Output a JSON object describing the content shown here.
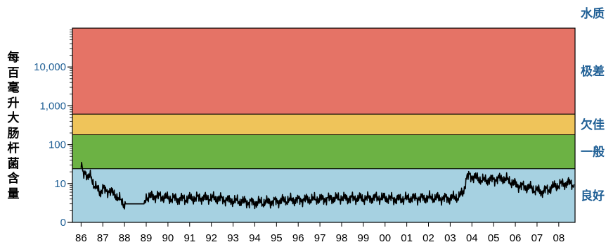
{
  "chart_data": {
    "type": "line",
    "ylabel": "每百毫升大肠杆菌含量",
    "yscale": "log",
    "ylim": [
      1,
      100000
    ],
    "yticks": [
      {
        "value": 1,
        "label": "0"
      },
      {
        "value": 10,
        "label": "10"
      },
      {
        "value": 100,
        "label": "100"
      },
      {
        "value": 1000,
        "label": "1,000"
      },
      {
        "value": 10000,
        "label": "10,000"
      }
    ],
    "xlim": [
      1985.6,
      2008.75
    ],
    "xticks": [
      "86",
      "87",
      "88",
      "89",
      "90",
      "91",
      "92",
      "93",
      "94",
      "95",
      "96",
      "97",
      "98",
      "99",
      "00",
      "01",
      "02",
      "03",
      "04",
      "05",
      "06",
      "07",
      "08"
    ],
    "right_header": "水质",
    "zones": [
      {
        "label": "极差",
        "from": 610,
        "to": 100000,
        "color": "#e57366"
      },
      {
        "label": "欠佳",
        "from": 180,
        "to": 610,
        "color": "#efc45a"
      },
      {
        "label": "一般",
        "from": 24,
        "to": 180,
        "color": "#6cb244"
      },
      {
        "label": "良好",
        "from": 1,
        "to": 24,
        "color": "#a6d1e1"
      }
    ],
    "series": [
      {
        "color": "#000000",
        "points": [
          [
            1986.0,
            30
          ],
          [
            1986.1,
            18
          ],
          [
            1986.2,
            22
          ],
          [
            1986.3,
            13
          ],
          [
            1986.45,
            16
          ],
          [
            1986.6,
            9
          ],
          [
            1986.75,
            7
          ],
          [
            1986.9,
            6
          ],
          [
            1987.0,
            8
          ],
          [
            1987.15,
            6
          ],
          [
            1987.3,
            7
          ],
          [
            1987.45,
            5.5
          ],
          [
            1987.6,
            5
          ],
          [
            1987.75,
            4
          ],
          [
            1987.9,
            3.2
          ],
          [
            1988.0,
            3
          ],
          [
            1988.5,
            3
          ],
          [
            1988.9,
            3
          ],
          [
            1989.0,
            4.5
          ],
          [
            1989.5,
            4.8
          ],
          [
            1990.0,
            4.2
          ],
          [
            1990.5,
            4
          ],
          [
            1991.0,
            4.1
          ],
          [
            1991.5,
            4.3
          ],
          [
            1992.0,
            4.2
          ],
          [
            1992.5,
            4
          ],
          [
            1993.0,
            3.6
          ],
          [
            1993.5,
            3.4
          ],
          [
            1994.0,
            3.2
          ],
          [
            1994.5,
            3.3
          ],
          [
            1995.0,
            3.5
          ],
          [
            1995.5,
            3.7
          ],
          [
            1996.0,
            3.8
          ],
          [
            1996.5,
            3.9
          ],
          [
            1997.0,
            4
          ],
          [
            1997.5,
            4.1
          ],
          [
            1998.0,
            4.2
          ],
          [
            1998.5,
            4.2
          ],
          [
            1999.0,
            4.1
          ],
          [
            1999.5,
            4.3
          ],
          [
            2000.0,
            4.2
          ],
          [
            2000.5,
            4
          ],
          [
            2001.0,
            4.1
          ],
          [
            2001.5,
            4.2
          ],
          [
            2002.0,
            4.3
          ],
          [
            2002.5,
            4.2
          ],
          [
            2003.0,
            4.2
          ],
          [
            2003.4,
            4.5
          ],
          [
            2003.6,
            6
          ],
          [
            2003.75,
            14
          ],
          [
            2003.9,
            16
          ],
          [
            2004.2,
            14
          ],
          [
            2004.5,
            12
          ],
          [
            2004.8,
            12.5
          ],
          [
            2005.1,
            13
          ],
          [
            2005.4,
            13.5
          ],
          [
            2005.7,
            12
          ],
          [
            2006.0,
            9.5
          ],
          [
            2006.3,
            8.5
          ],
          [
            2006.6,
            8
          ],
          [
            2006.9,
            7
          ],
          [
            2007.2,
            6.2
          ],
          [
            2007.5,
            7
          ],
          [
            2007.8,
            8.5
          ],
          [
            2008.1,
            9.5
          ],
          [
            2008.4,
            10.5
          ],
          [
            2008.7,
            9.5
          ]
        ]
      }
    ]
  }
}
